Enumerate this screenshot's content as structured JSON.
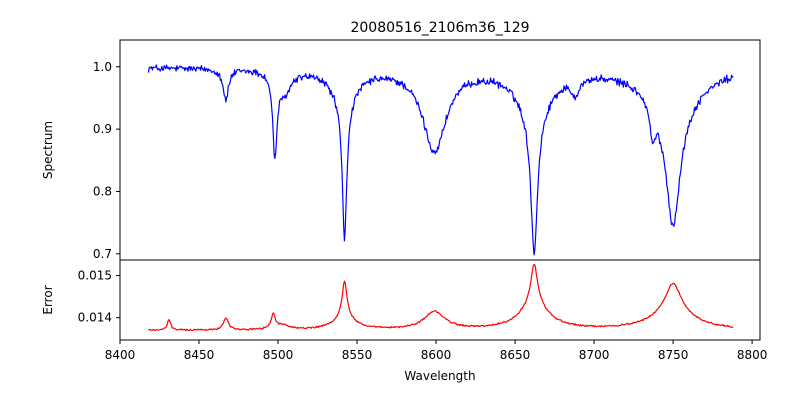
{
  "chart_data": {
    "type": "line",
    "title": "20080516_2106m36_129",
    "xlabel": "Wavelength",
    "xlim": [
      8400,
      8805
    ],
    "x_ticks": [
      "8400",
      "8450",
      "8500",
      "8550",
      "8600",
      "8650",
      "8700",
      "8750",
      "8800"
    ],
    "panels": [
      {
        "name": "spectrum",
        "ylabel": "Spectrum",
        "ylim": [
          0.69,
          1.043
        ],
        "y_ticks": [
          "0.7",
          "0.8",
          "0.9",
          "1.0"
        ],
        "color": "#0000ff",
        "x_start": 8418,
        "x_end": 8788,
        "baseline": 0.999,
        "noise": 0.009,
        "features": [
          {
            "center": 8467,
            "depth": 0.05,
            "width": 2
          },
          {
            "center": 8498,
            "depth": 0.13,
            "width": 1.6
          },
          {
            "center": 8504,
            "depth": 0.035,
            "width": 5
          },
          {
            "center": 8542.1,
            "depth": 0.22,
            "width": 1.7
          },
          {
            "center": 8542.1,
            "depth": 0.05,
            "width": 9
          },
          {
            "center": 8599,
            "depth": 0.13,
            "width": 9
          },
          {
            "center": 8662.1,
            "depth": 0.22,
            "width": 2.5
          },
          {
            "center": 8662.1,
            "depth": 0.07,
            "width": 12
          },
          {
            "center": 8688,
            "depth": 0.025,
            "width": 3
          },
          {
            "center": 8737,
            "depth": 0.05,
            "width": 2
          },
          {
            "center": 8750,
            "depth": 0.17,
            "width": 5
          },
          {
            "center": 8750,
            "depth": 0.08,
            "width": 16
          }
        ]
      },
      {
        "name": "error",
        "ylabel": "Error",
        "ylim": [
          0.01347,
          0.01537
        ],
        "y_ticks": [
          "0.014",
          "0.015"
        ],
        "color": "#ff0000",
        "x_start": 8418,
        "x_end": 8788,
        "baseline": 0.0137,
        "noise": 3e-05,
        "features": [
          {
            "center": 8431,
            "depth": -0.00025,
            "width": 1.2
          },
          {
            "center": 8467,
            "depth": -0.00028,
            "width": 2
          },
          {
            "center": 8497,
            "depth": -0.00035,
            "width": 1.6
          },
          {
            "center": 8503,
            "depth": -0.0001,
            "width": 5
          },
          {
            "center": 8542.1,
            "depth": -0.00085,
            "width": 1.8
          },
          {
            "center": 8542.1,
            "depth": -0.0003,
            "width": 8
          },
          {
            "center": 8599,
            "depth": -0.00042,
            "width": 8
          },
          {
            "center": 8662.1,
            "depth": -0.00095,
            "width": 2.5
          },
          {
            "center": 8662.1,
            "depth": -0.0006,
            "width": 11
          },
          {
            "center": 8750,
            "depth": -0.0007,
            "width": 6
          },
          {
            "center": 8750,
            "depth": -0.0004,
            "width": 16
          }
        ]
      }
    ]
  }
}
